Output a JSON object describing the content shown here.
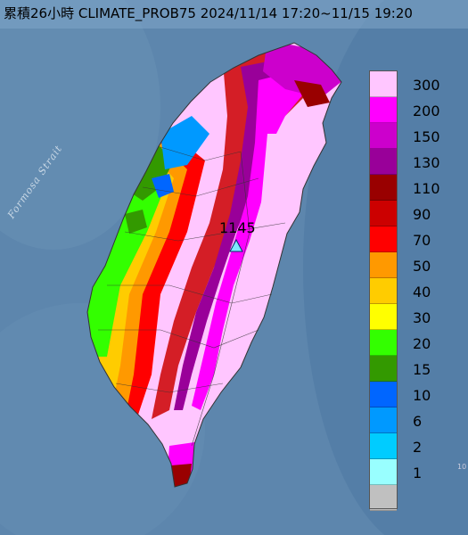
{
  "title": "累積26小時 CLIMATE_PROB75 2024/11/14 17:20~11/15 19:20",
  "sea_label": "Formosa Strait",
  "station": {
    "value": "1145",
    "marker": "triangle-marker-icon"
  },
  "edge_fragment": "10",
  "legend": {
    "items": [
      {
        "label": "300",
        "color": "#ffc6ff"
      },
      {
        "label": "200",
        "color": "#ff00ff"
      },
      {
        "label": "150",
        "color": "#cc00cc"
      },
      {
        "label": "130",
        "color": "#990099"
      },
      {
        "label": "110",
        "color": "#990000"
      },
      {
        "label": "90",
        "color": "#cc0000"
      },
      {
        "label": "70",
        "color": "#ff0000"
      },
      {
        "label": "50",
        "color": "#ff9900"
      },
      {
        "label": "40",
        "color": "#ffcc00"
      },
      {
        "label": "30",
        "color": "#ffff00"
      },
      {
        "label": "20",
        "color": "#33ff00"
      },
      {
        "label": "15",
        "color": "#339900"
      },
      {
        "label": "10",
        "color": "#0066ff"
      },
      {
        "label": "6",
        "color": "#0099ff"
      },
      {
        "label": "2",
        "color": "#00ccff"
      },
      {
        "label": "1",
        "color": "#99ffff"
      },
      {
        "label": "",
        "color": "#c0c0c0"
      }
    ]
  }
}
